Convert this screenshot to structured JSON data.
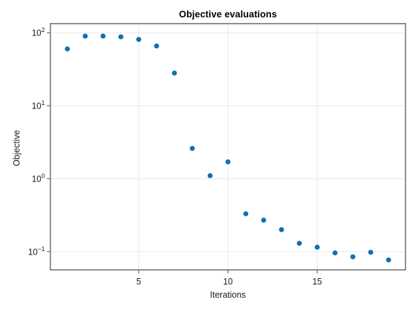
{
  "chart_data": {
    "type": "scatter",
    "title": "Objective evaluations",
    "xlabel": "Iterations",
    "ylabel": "Objective",
    "yscale": "log",
    "grid": true,
    "legend": null,
    "x": [
      1,
      2,
      3,
      4,
      5,
      6,
      7,
      8,
      9,
      10,
      11,
      12,
      13,
      14,
      15,
      16,
      17,
      18,
      19
    ],
    "y": [
      60,
      90,
      90,
      88,
      81,
      66,
      28,
      2.6,
      1.1,
      1.7,
      0.33,
      0.27,
      0.2,
      0.13,
      0.115,
      0.096,
      0.085,
      0.098,
      0.077
    ],
    "x_ticks": [
      5,
      10,
      15
    ],
    "y_tick_exponents": [
      2,
      1,
      0,
      -1
    ],
    "y_tick_base": "10",
    "xlim": [
      0.05,
      19.95
    ],
    "ylim_log10": [
      -1.25,
      2.125
    ],
    "colors": {
      "marker": "#1170b1",
      "grid": "#e8e8e8",
      "spine": "#707070",
      "tick": "#707070",
      "text": "#1a1a1a",
      "background": "#ffffff"
    }
  }
}
